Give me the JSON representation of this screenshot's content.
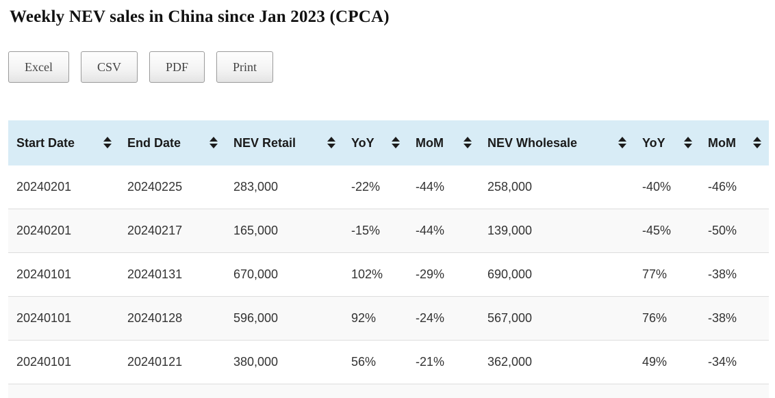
{
  "page": {
    "title": "Weekly NEV sales in China since Jan 2023 (CPCA)"
  },
  "toolbar": {
    "buttons": [
      {
        "label": "Excel"
      },
      {
        "label": "CSV"
      },
      {
        "label": "PDF"
      },
      {
        "label": "Print"
      }
    ]
  },
  "table": {
    "columns": [
      {
        "label": "Start Date"
      },
      {
        "label": "End Date"
      },
      {
        "label": "NEV Retail"
      },
      {
        "label": "YoY"
      },
      {
        "label": "MoM"
      },
      {
        "label": "NEV Wholesale"
      },
      {
        "label": "YoY"
      },
      {
        "label": "MoM"
      }
    ],
    "rows": [
      [
        "20240201",
        "20240225",
        "283,000",
        "-22%",
        "-44%",
        "258,000",
        "-40%",
        "-46%"
      ],
      [
        "20240201",
        "20240217",
        "165,000",
        "-15%",
        "-44%",
        "139,000",
        "-45%",
        "-50%"
      ],
      [
        "20240101",
        "20240131",
        "670,000",
        "102%",
        "-29%",
        "690,000",
        "77%",
        "-38%"
      ],
      [
        "20240101",
        "20240128",
        "596,000",
        "92%",
        "-24%",
        "567,000",
        "76%",
        "-38%"
      ],
      [
        "20240101",
        "20240121",
        "380,000",
        "56%",
        "-21%",
        "362,000",
        "49%",
        "-34%"
      ]
    ]
  },
  "colors": {
    "header_bg": "#d8ecf6",
    "alt_row_bg": "#f9f9f9",
    "row_border": "#dddddd",
    "button_border": "#9a9a9a",
    "button_text": "#444444",
    "cell_text": "#333333"
  },
  "icons": {
    "sort": "sort-arrows"
  }
}
